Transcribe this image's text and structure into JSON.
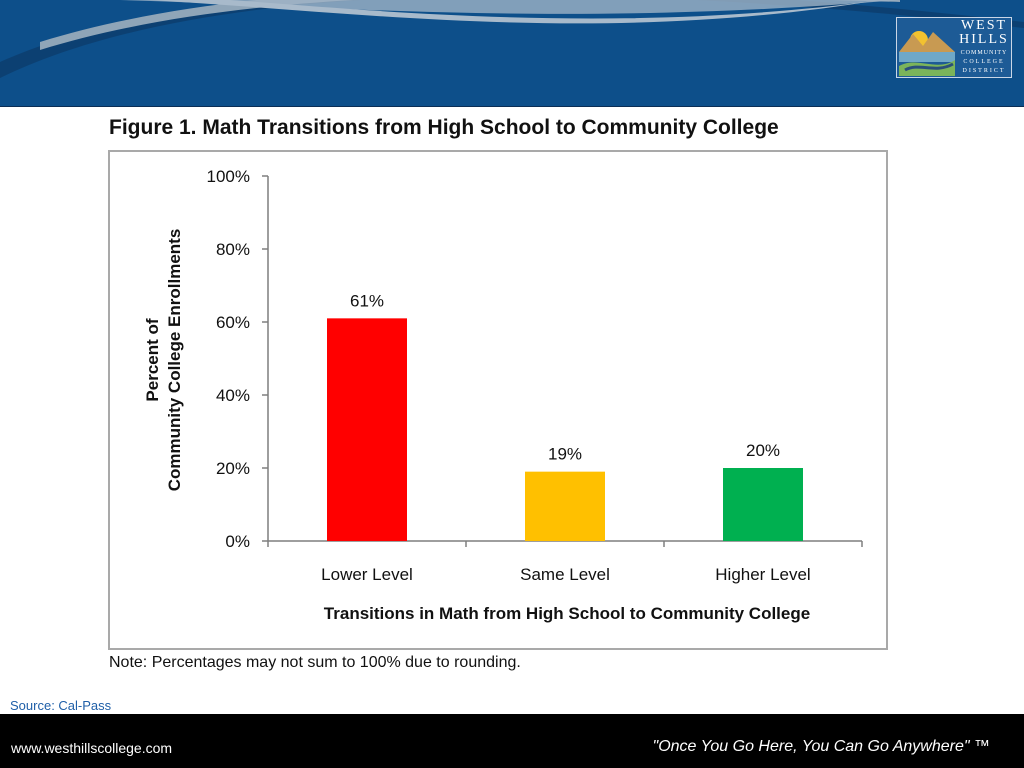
{
  "header": {
    "logo": {
      "line1": "WEST",
      "line2": "HILLS",
      "line3": "COMMUNITY",
      "line4": "COLLEGE",
      "line5": "DISTRICT"
    },
    "colors": {
      "bar": "#0d4f8a",
      "swoosh": "#8fa5b8",
      "swoosh_dark": "#0a2e55"
    }
  },
  "figure_title": "Figure 1. Math Transitions from High School to Community College",
  "chart_data": {
    "type": "bar",
    "title": "Figure 1. Math Transitions from High School to Community College",
    "xlabel": "Transitions in Math from High School to Community College",
    "ylabel": [
      "Percent of",
      "Community College Enrollments"
    ],
    "categories": [
      "Lower Level",
      "Same Level",
      "Higher Level"
    ],
    "values": [
      61,
      19,
      20
    ],
    "data_labels": [
      "61%",
      "19%",
      "20%"
    ],
    "colors": [
      "#ff0000",
      "#ffc000",
      "#00b050"
    ],
    "ylim": [
      0,
      100
    ],
    "yticks": [
      0,
      20,
      40,
      60,
      80,
      100
    ],
    "ytick_labels": [
      "0%",
      "20%",
      "40%",
      "60%",
      "80%",
      "100%"
    ],
    "grid": false,
    "legend": "none"
  },
  "note": "Note: Percentages may not sum to 100% due to rounding.",
  "source": "Source: Cal-Pass",
  "footer": {
    "url": "www.westhillscollege.com",
    "slogan": "\"Once You Go Here, You Can Go Anywhere\" ™"
  }
}
